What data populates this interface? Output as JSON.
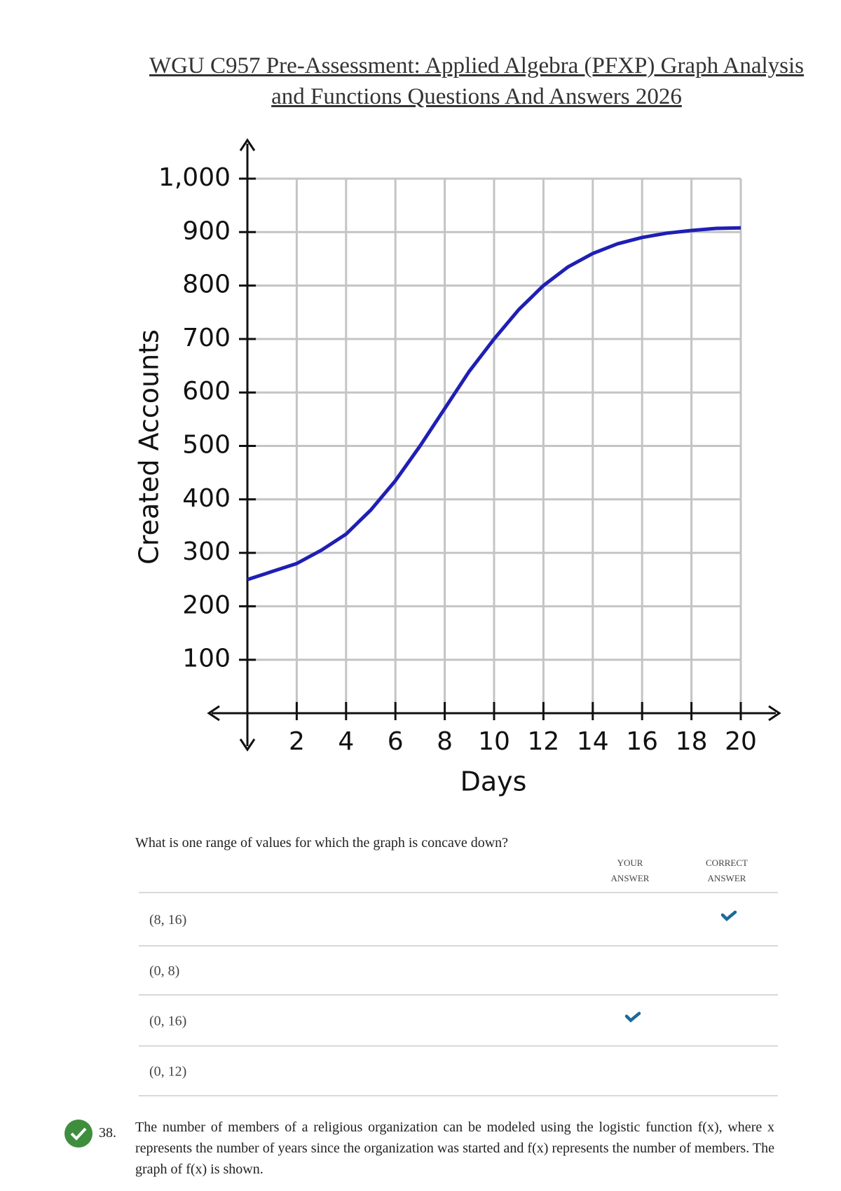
{
  "header": {
    "title": "WGU C957 Pre-Assessment: Applied Algebra (PFXP) Graph Analysis and Functions Questions And Answers 2026"
  },
  "chart_data": {
    "type": "line",
    "x_label": "Days",
    "y_label": "Created Accounts",
    "x": [
      0,
      1,
      2,
      3,
      4,
      5,
      6,
      7,
      8,
      9,
      10,
      11,
      12,
      13,
      14,
      15,
      16,
      17,
      18,
      19,
      20
    ],
    "values": [
      250,
      265,
      280,
      305,
      335,
      380,
      435,
      500,
      570,
      640,
      700,
      755,
      800,
      835,
      860,
      878,
      890,
      898,
      903,
      907,
      908
    ],
    "color": "#1f1fb4",
    "xlim": [
      0,
      20
    ],
    "xticks": [
      2,
      4,
      6,
      8,
      10,
      12,
      14,
      16,
      18,
      20
    ],
    "ylim": [
      0,
      1000
    ],
    "yticks": [
      100,
      200,
      300,
      400,
      500,
      600,
      700,
      800,
      900,
      {
        "value": 1000,
        "label": "1,000"
      }
    ],
    "grid": true
  },
  "question": {
    "text": "What is one range of values for which the graph is concave down?"
  },
  "table": {
    "headers": [
      "YOUR ANSWER",
      "CORRECT ANSWER"
    ],
    "rows": [
      {
        "option": "(8, 16)",
        "your_answer": false,
        "correct_answer": true
      },
      {
        "option": "(0, 8)",
        "your_answer": false,
        "correct_answer": false
      },
      {
        "option": "(0, 16)",
        "your_answer": true,
        "correct_answer": false
      },
      {
        "option": "(0, 12)",
        "your_answer": false,
        "correct_answer": false
      }
    ]
  },
  "next_question": {
    "number": "38.",
    "text": "The number of members of a religious organization can be modeled using the logistic function f(x), where x represents the number of years since the organization was started and f(x) represents the number of members. The graph of f(x) is shown."
  }
}
